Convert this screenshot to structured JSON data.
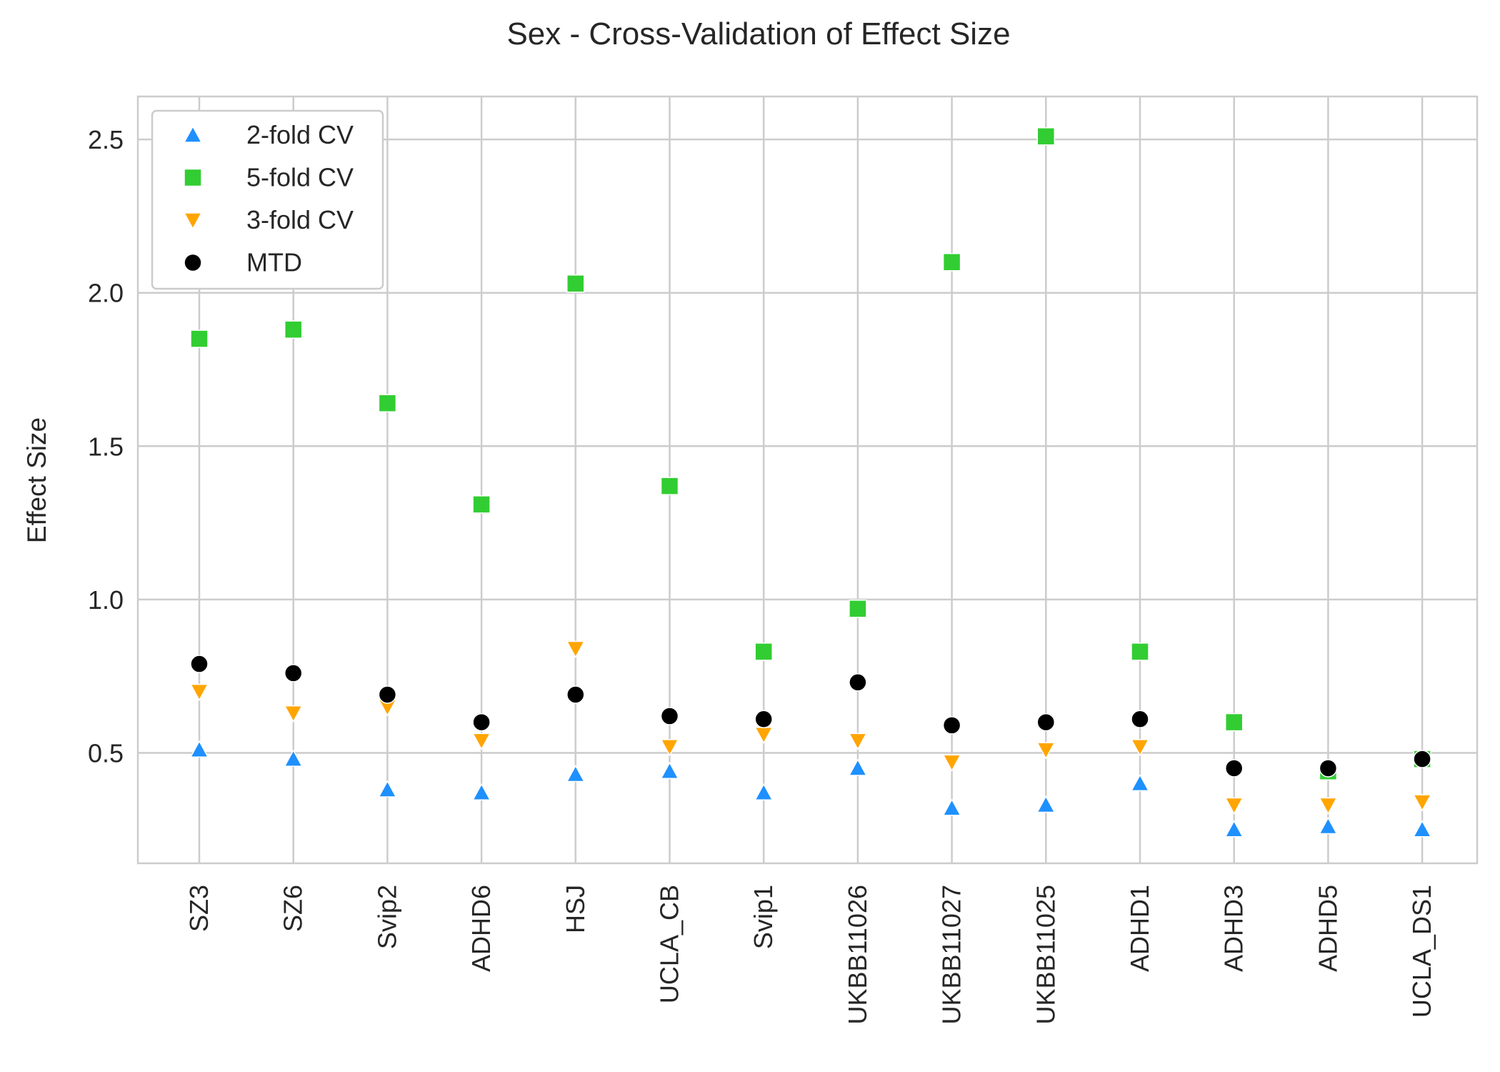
{
  "chart_data": {
    "type": "scatter",
    "title": "Sex - Cross-Validation of Effect Size",
    "xlabel": "",
    "ylabel": "Effect Size",
    "categories": [
      "SZ3",
      "SZ6",
      "Svip2",
      "ADHD6",
      "HSJ",
      "UCLA_CB",
      "Svip1",
      "UKBB11026",
      "UKBB11027",
      "UKBB11025",
      "ADHD1",
      "ADHD3",
      "ADHD5",
      "UCLA_DS1"
    ],
    "ylim": [
      0.14,
      2.64
    ],
    "yticks": [
      0.5,
      1.0,
      1.5,
      2.0,
      2.5
    ],
    "ytick_labels": [
      "0.5",
      "1.0",
      "1.5",
      "2.0",
      "2.5"
    ],
    "grid": true,
    "legend_position": "top-left",
    "series": [
      {
        "name": "2-fold CV",
        "marker": "triangle-up",
        "color": "#1e90ff",
        "values": [
          0.51,
          0.48,
          0.38,
          0.37,
          0.43,
          0.44,
          0.37,
          0.45,
          0.32,
          0.33,
          0.4,
          0.25,
          0.26,
          0.25
        ]
      },
      {
        "name": "5-fold CV",
        "marker": "square",
        "color": "#32cd32",
        "values": [
          1.85,
          1.88,
          1.64,
          1.31,
          2.03,
          1.37,
          0.83,
          0.97,
          2.1,
          2.51,
          0.83,
          0.6,
          0.44,
          0.48
        ]
      },
      {
        "name": "3-fold CV",
        "marker": "triangle-down",
        "color": "#ffa500",
        "values": [
          0.7,
          0.63,
          0.65,
          0.54,
          0.84,
          0.52,
          0.56,
          0.54,
          0.47,
          0.51,
          0.52,
          0.33,
          0.33,
          0.34
        ]
      },
      {
        "name": "MTD",
        "marker": "circle",
        "color": "#000000",
        "values": [
          0.79,
          0.76,
          0.69,
          0.6,
          0.69,
          0.62,
          0.61,
          0.73,
          0.59,
          0.6,
          0.61,
          0.45,
          0.45,
          0.48
        ]
      }
    ]
  }
}
